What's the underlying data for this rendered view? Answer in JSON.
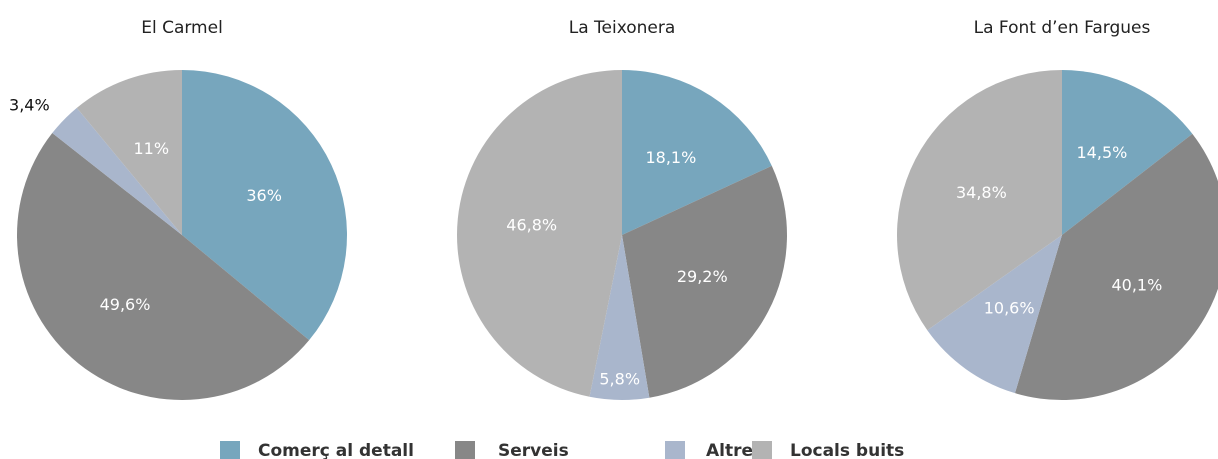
{
  "chart_data": [
    {
      "type": "pie",
      "title": "El  Carmel",
      "categories": [
        "Comerç al detall",
        "Serveis",
        "Altres",
        "Locals buits"
      ],
      "values": [
        36,
        49.6,
        3.4,
        11
      ],
      "value_labels": [
        "36%",
        "49,6%",
        "3,4%",
        "11%"
      ],
      "colors": [
        "#77a6bd",
        "#878787",
        "#a9b6cc",
        "#b3b3b3"
      ]
    },
    {
      "type": "pie",
      "title": "La Teixonera",
      "categories": [
        "Comerç al detall",
        "Serveis",
        "Altres",
        "Locals buits"
      ],
      "values": [
        18.1,
        29.2,
        5.8,
        46.8
      ],
      "value_labels": [
        "18,1%",
        "29,2%",
        "5,8%",
        "46,8%"
      ],
      "colors": [
        "#77a6bd",
        "#878787",
        "#a9b6cc",
        "#b3b3b3"
      ]
    },
    {
      "type": "pie",
      "title": "La Font d’en Fargues",
      "categories": [
        "Comerç al detall",
        "Serveis",
        "Altres",
        "Locals buits"
      ],
      "values": [
        14.5,
        40.1,
        10.6,
        34.8
      ],
      "value_labels": [
        "14,5%",
        "40,1%",
        "10,6%",
        "34,8%"
      ],
      "colors": [
        "#77a6bd",
        "#878787",
        "#a9b6cc",
        "#b3b3b3"
      ]
    }
  ]
}
